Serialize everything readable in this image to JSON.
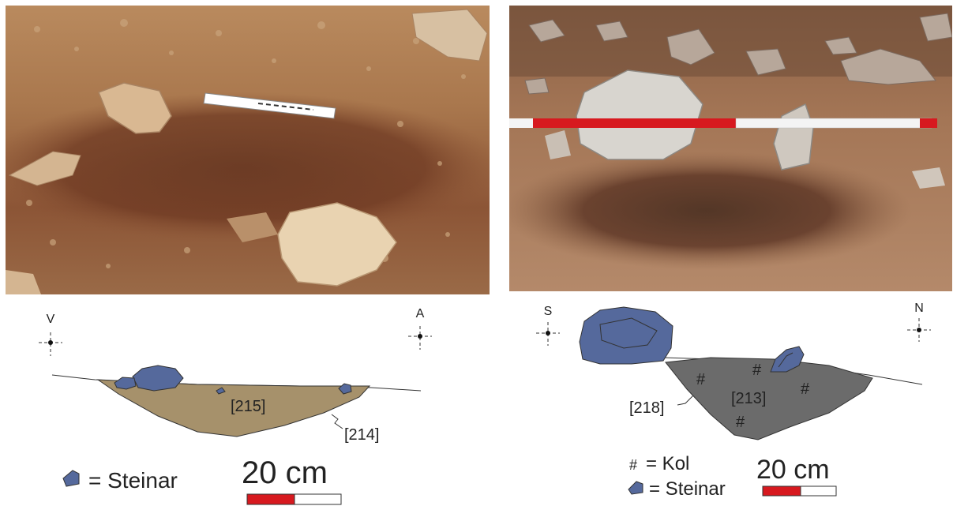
{
  "left_profile": {
    "compass_left": "V",
    "compass_right": "A",
    "fill_label": "[215]",
    "cut_label": "[214]",
    "legend_stone": "= Steinar",
    "scale_label": "20 cm"
  },
  "right_profile": {
    "compass_left": "S",
    "compass_right": "N",
    "fill_label": "[213]",
    "cut_label": "[218]",
    "charcoal_symbol": "#",
    "legend_charcoal": "= Kol",
    "legend_stone": "= Steinar",
    "scale_label": "20 cm"
  },
  "colors": {
    "stone": "#55699c",
    "fill_left": "#a6916b",
    "fill_right": "#6b6b6b",
    "scale_red": "#d7191f",
    "soil": "#8a5a3a"
  }
}
